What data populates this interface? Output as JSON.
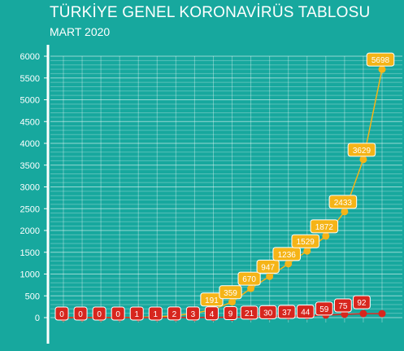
{
  "chart_data": {
    "type": "line",
    "title": "TÜRKİYE GENEL KORONAVİRÜS TABLOSU",
    "subtitle": "MART 2020",
    "xlabel": "",
    "ylabel": "",
    "ylim": [
      0,
      6000
    ],
    "yticks": [
      0,
      500,
      1000,
      1500,
      2000,
      2500,
      3000,
      3500,
      4000,
      4500,
      5000,
      5500,
      6000
    ],
    "grid": true,
    "series": [
      {
        "color": "#f5b417",
        "values": [
          1,
          1,
          1,
          5,
          6,
          18,
          47,
          98,
          191,
          359,
          670,
          947,
          1236,
          1529,
          1872,
          2433,
          3629,
          5698
        ],
        "labels": [
          "",
          "",
          "",
          "",
          "",
          "",
          "",
          "",
          "191",
          "359",
          "670",
          "947",
          "1236",
          "1529",
          "1872",
          "2433",
          "3629",
          "5698"
        ]
      },
      {
        "color": "#d7261e",
        "values": [
          0,
          0,
          0,
          0,
          1,
          1,
          2,
          3,
          4,
          9,
          21,
          30,
          37,
          44,
          59,
          75,
          92,
          92
        ],
        "labels": [
          "0",
          "0",
          "0",
          "0",
          "1",
          "1",
          "2",
          "3",
          "4",
          "9",
          "21",
          "30",
          "37",
          "44",
          "59",
          "75",
          "92",
          ""
        ]
      }
    ]
  }
}
